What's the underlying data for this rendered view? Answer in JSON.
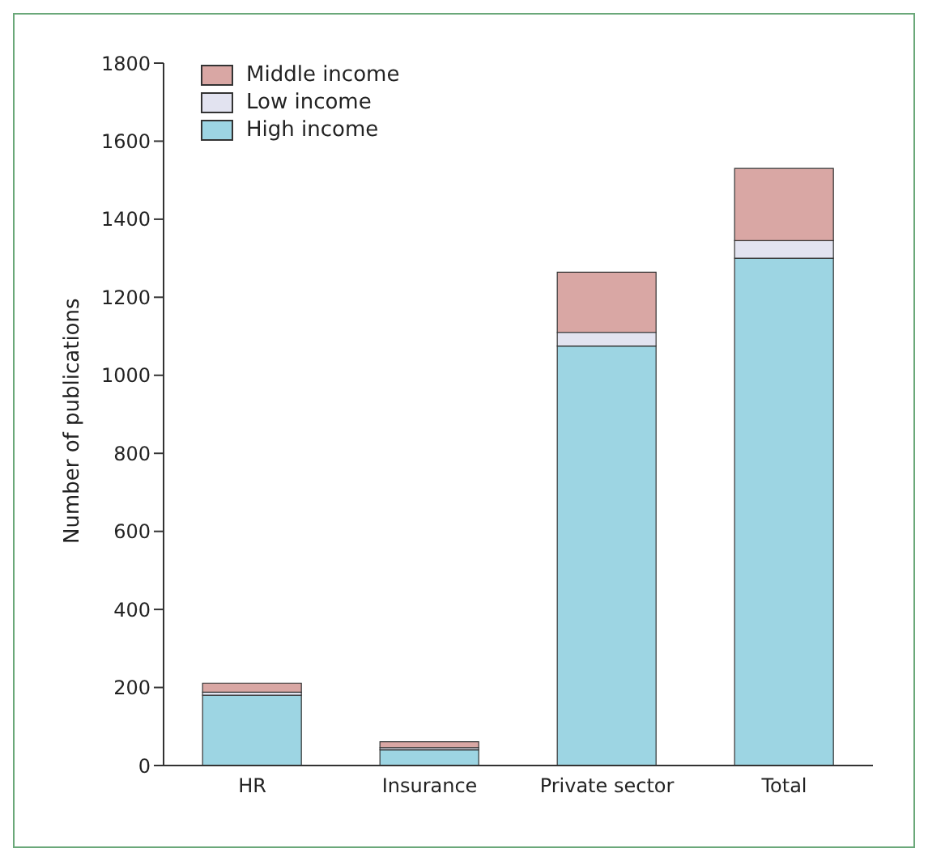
{
  "chart_data": {
    "type": "bar",
    "stacked": true,
    "ylabel": "Number of publications",
    "categories": [
      "HR",
      "Insurance",
      "Private sector",
      "Total"
    ],
    "series": [
      {
        "name": "High income",
        "color": "#9dd5e3",
        "values": [
          180,
          40,
          1075,
          1300
        ]
      },
      {
        "name": "Low income",
        "color": "#e2e3f0",
        "values": [
          8,
          6,
          35,
          45
        ]
      },
      {
        "name": "Middle income",
        "color": "#d9a7a4",
        "values": [
          23,
          15,
          154,
          185
        ]
      }
    ],
    "ylim": [
      0,
      1800
    ],
    "yticks": [
      0,
      200,
      400,
      600,
      800,
      1000,
      1200,
      1400,
      1600,
      1800
    ],
    "grid": false,
    "legend": "top left"
  }
}
